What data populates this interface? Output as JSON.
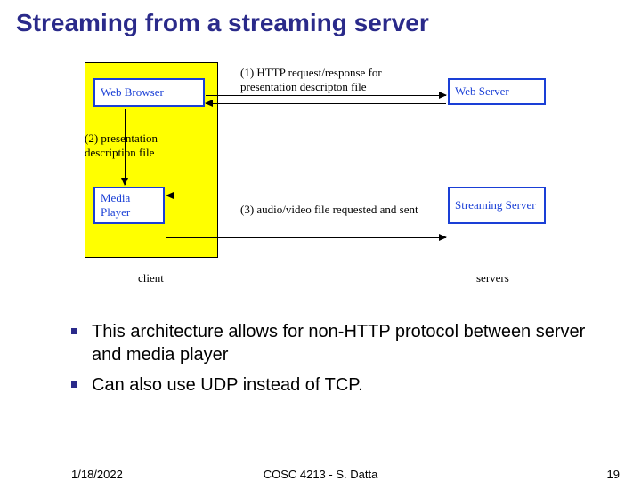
{
  "title": "Streaming from a streaming server",
  "title_color": "#2a2a8a",
  "title_fontsize": 28,
  "diagram": {
    "client_group_bg": "#ffff00",
    "node_border_color": "#1a3fd6",
    "node_text_color": "#1a3fd6",
    "nodes": {
      "browser": "Web Browser",
      "player": "Media Player",
      "webserver": "Web Server",
      "streamserver": "Streaming Server"
    },
    "labels": {
      "l1": "(1) HTTP request/response for presentation descripton file",
      "l2": "(2)  presentation description file",
      "l3": "(3) audio/video file requested and sent",
      "client": "client",
      "servers": "servers"
    }
  },
  "bullets": [
    "This architecture allows for non-HTTP protocol between server and media player",
    "Can also use UDP instead of TCP."
  ],
  "bullet_fontsize": 20,
  "bullet_marker_color": "#2a2a8a",
  "footer": {
    "date": "1/18/2022",
    "course": "COSC 4213 - S. Datta",
    "page": "19"
  }
}
